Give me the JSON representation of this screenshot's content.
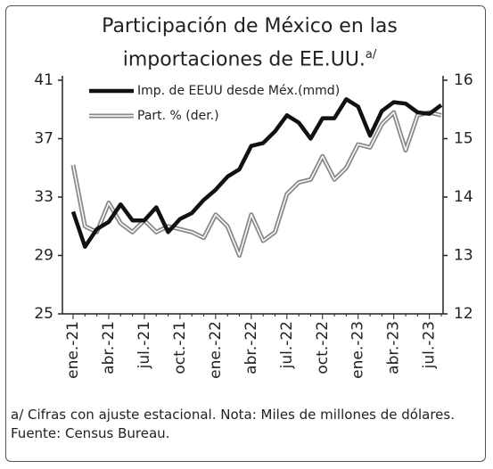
{
  "chart_data": {
    "type": "line",
    "title": "Participación de México en las importaciones de EE.UU.",
    "title_note": "a/",
    "footnote": "a/ Cifras con ajuste estacional. Nota: Miles de millones de dólares.",
    "source": "Fuente: Census Bureau.",
    "categories": [
      "ene.-21",
      null,
      null,
      "abr.-21",
      null,
      null,
      "jul.-21",
      null,
      null,
      "oct.-21",
      null,
      null,
      "ene.-22",
      null,
      null,
      "abr.-22",
      null,
      null,
      "jul.-22",
      null,
      null,
      "oct.-22",
      null,
      null,
      "ene.-23",
      null,
      null,
      "abr.-23",
      null,
      null,
      "jul.-23",
      null
    ],
    "series": [
      {
        "name": "Imp. de EEUU desde Méx.(mmd)",
        "color": "#111111",
        "axis": "y",
        "values": [
          32.0,
          29.6,
          30.8,
          31.3,
          32.5,
          31.4,
          31.4,
          32.3,
          30.6,
          31.5,
          31.9,
          32.8,
          33.5,
          34.4,
          34.9,
          36.5,
          36.7,
          37.5,
          38.6,
          38.1,
          37.0,
          38.4,
          38.4,
          39.7,
          39.2,
          37.2,
          38.9,
          39.5,
          39.4,
          38.8,
          38.7,
          39.3
        ]
      },
      {
        "name": "Part. % (der.)",
        "color": "#888888",
        "axis": "y2",
        "values": [
          14.55,
          13.5,
          13.4,
          13.9,
          13.55,
          13.4,
          13.6,
          13.4,
          13.5,
          13.45,
          13.4,
          13.3,
          13.7,
          13.5,
          13.0,
          13.7,
          13.25,
          13.4,
          14.05,
          14.25,
          14.3,
          14.7,
          14.3,
          14.5,
          14.9,
          14.85,
          15.25,
          15.45,
          14.8,
          15.4,
          15.45,
          15.4
        ]
      }
    ],
    "ylim": [
      25,
      41
    ],
    "yticks": [
      25,
      29,
      33,
      37,
      41
    ],
    "y2lim": [
      12,
      16
    ],
    "y2ticks": [
      12,
      13,
      14,
      15,
      16
    ],
    "legend": "top-left"
  }
}
